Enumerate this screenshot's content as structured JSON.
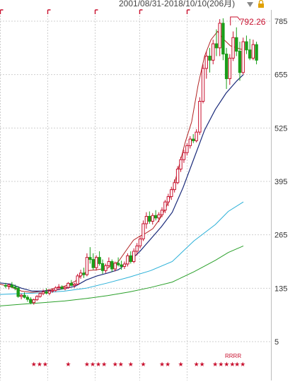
{
  "header": {
    "range_label": "2001/08/31-2018/10/10(206月)"
  },
  "chart_data": {
    "type": "candlestick",
    "y_ticks": [
      785,
      655,
      525,
      395,
      265,
      135,
      5
    ],
    "ylim": [
      -60,
      805
    ],
    "grid": true,
    "max_callout": {
      "value_label": "792.26",
      "value": 792.26,
      "index": 107
    },
    "colors": {
      "up": "#c8102e",
      "down": "#1a9e1a",
      "ma_short": "#b22222",
      "ma_mid": "#1a2a7a",
      "ma_long": "#2ab0d8",
      "ma_longest": "#2aa02a"
    },
    "moving_averages": [
      {
        "key": "ma_short",
        "points": [
          [
            0,
            145
          ],
          [
            5,
            138
          ],
          [
            10,
            128
          ],
          [
            15,
            125
          ],
          [
            20,
            128
          ],
          [
            25,
            134
          ],
          [
            30,
            140
          ],
          [
            35,
            152
          ],
          [
            38,
            168
          ],
          [
            41,
            178
          ],
          [
            45,
            180
          ],
          [
            50,
            184
          ],
          [
            55,
            200
          ],
          [
            59,
            230
          ],
          [
            62,
            252
          ],
          [
            65,
            262
          ],
          [
            68,
            270
          ],
          [
            71,
            280
          ],
          [
            74,
            302
          ],
          [
            77,
            330
          ],
          [
            80,
            370
          ],
          [
            83,
            430
          ],
          [
            86,
            490
          ],
          [
            89,
            540
          ],
          [
            92,
            630
          ],
          [
            95,
            700
          ],
          [
            98,
            740
          ],
          [
            101,
            760
          ],
          [
            104,
            740
          ],
          [
            107,
            725
          ],
          [
            110,
            720
          ],
          [
            113,
            715
          ]
        ]
      },
      {
        "key": "ma_mid",
        "points": [
          [
            0,
            148
          ],
          [
            5,
            145
          ],
          [
            10,
            135
          ],
          [
            15,
            128
          ],
          [
            20,
            128
          ],
          [
            25,
            130
          ],
          [
            30,
            134
          ],
          [
            35,
            140
          ],
          [
            40,
            155
          ],
          [
            45,
            165
          ],
          [
            50,
            172
          ],
          [
            55,
            180
          ],
          [
            60,
            200
          ],
          [
            65,
            225
          ],
          [
            70,
            255
          ],
          [
            75,
            285
          ],
          [
            80,
            320
          ],
          [
            85,
            380
          ],
          [
            90,
            450
          ],
          [
            95,
            520
          ],
          [
            100,
            570
          ],
          [
            105,
            610
          ],
          [
            110,
            640
          ],
          [
            113,
            655
          ]
        ]
      },
      {
        "key": "ma_long",
        "points": [
          [
            0,
            120
          ],
          [
            10,
            122
          ],
          [
            20,
            124
          ],
          [
            30,
            128
          ],
          [
            40,
            135
          ],
          [
            50,
            148
          ],
          [
            60,
            162
          ],
          [
            70,
            178
          ],
          [
            80,
            200
          ],
          [
            90,
            250
          ],
          [
            100,
            290
          ],
          [
            106,
            322
          ],
          [
            113,
            345
          ]
        ]
      },
      {
        "key": "ma_longest",
        "points": [
          [
            0,
            92
          ],
          [
            10,
            96
          ],
          [
            20,
            100
          ],
          [
            30,
            104
          ],
          [
            40,
            110
          ],
          [
            50,
            117
          ],
          [
            60,
            126
          ],
          [
            70,
            137
          ],
          [
            80,
            150
          ],
          [
            90,
            175
          ],
          [
            100,
            203
          ],
          [
            106,
            222
          ],
          [
            113,
            238
          ]
        ]
      }
    ],
    "candles": [
      [
        0,
        142,
        148,
        135,
        140
      ],
      [
        1,
        140,
        146,
        132,
        143
      ],
      [
        2,
        143,
        150,
        136,
        138
      ],
      [
        3,
        138,
        144,
        130,
        135
      ],
      [
        4,
        135,
        140,
        112,
        115
      ],
      [
        5,
        115,
        122,
        108,
        118
      ],
      [
        6,
        118,
        125,
        110,
        113
      ],
      [
        7,
        113,
        118,
        102,
        108
      ],
      [
        8,
        108,
        113,
        96,
        100
      ],
      [
        9,
        100,
        110,
        95,
        107
      ],
      [
        10,
        107,
        118,
        104,
        115
      ],
      [
        11,
        115,
        125,
        112,
        122
      ],
      [
        12,
        122,
        132,
        118,
        126
      ],
      [
        13,
        126,
        135,
        120,
        123
      ],
      [
        14,
        123,
        130,
        118,
        128
      ],
      [
        15,
        128,
        135,
        124,
        130
      ],
      [
        16,
        130,
        140,
        126,
        136
      ],
      [
        17,
        136,
        145,
        130,
        138
      ],
      [
        18,
        138,
        142,
        132,
        134
      ],
      [
        19,
        134,
        140,
        130,
        137
      ],
      [
        20,
        137,
        150,
        134,
        147
      ],
      [
        21,
        147,
        155,
        140,
        142
      ],
      [
        22,
        142,
        148,
        136,
        145
      ],
      [
        23,
        145,
        170,
        142,
        165
      ],
      [
        24,
        165,
        180,
        158,
        172
      ],
      [
        25,
        172,
        185,
        160,
        168
      ],
      [
        26,
        168,
        220,
        164,
        210
      ],
      [
        27,
        210,
        235,
        195,
        205
      ],
      [
        28,
        205,
        220,
        180,
        185
      ],
      [
        29,
        185,
        215,
        178,
        210
      ],
      [
        30,
        210,
        225,
        190,
        195
      ],
      [
        31,
        195,
        205,
        170,
        178
      ],
      [
        32,
        178,
        195,
        172,
        190
      ],
      [
        33,
        190,
        210,
        185,
        200
      ],
      [
        34,
        200,
        205,
        175,
        182
      ],
      [
        35,
        182,
        200,
        176,
        196
      ],
      [
        36,
        196,
        210,
        188,
        192
      ],
      [
        37,
        192,
        202,
        180,
        188
      ],
      [
        38,
        188,
        200,
        182,
        194
      ],
      [
        39,
        194,
        220,
        188,
        214
      ],
      [
        40,
        214,
        225,
        195,
        200
      ],
      [
        41,
        200,
        232,
        196,
        225
      ],
      [
        42,
        225,
        245,
        215,
        238
      ],
      [
        43,
        238,
        262,
        232,
        255
      ],
      [
        44,
        255,
        300,
        250,
        292
      ],
      [
        45,
        292,
        320,
        280,
        310
      ],
      [
        46,
        310,
        322,
        292,
        298
      ],
      [
        47,
        298,
        318,
        290,
        312
      ],
      [
        48,
        312,
        325,
        300,
        306
      ],
      [
        49,
        306,
        320,
        296,
        314
      ],
      [
        50,
        314,
        332,
        308,
        325
      ],
      [
        51,
        325,
        350,
        318,
        345
      ],
      [
        52,
        345,
        365,
        335,
        358
      ],
      [
        53,
        358,
        382,
        350,
        375
      ],
      [
        54,
        375,
        400,
        368,
        392
      ],
      [
        55,
        392,
        432,
        388,
        425
      ],
      [
        56,
        425,
        455,
        418,
        448
      ],
      [
        57,
        448,
        472,
        440,
        465
      ],
      [
        58,
        465,
        488,
        458,
        482
      ],
      [
        59,
        482,
        505,
        475,
        498
      ],
      [
        60,
        498,
        510,
        488,
        494
      ],
      [
        61,
        494,
        522,
        490,
        515
      ],
      [
        62,
        515,
        600,
        508,
        590
      ],
      [
        63,
        590,
        680,
        585,
        670
      ],
      [
        64,
        670,
        712,
        645,
        700
      ],
      [
        65,
        700,
        720,
        660,
        690
      ],
      [
        66,
        690,
        740,
        680,
        730
      ],
      [
        67,
        730,
        765,
        700,
        720
      ],
      [
        68,
        720,
        790,
        700,
        780
      ],
      [
        69,
        780,
        792,
        690,
        705
      ],
      [
        70,
        705,
        720,
        620,
        645
      ],
      [
        71,
        645,
        705,
        630,
        695
      ],
      [
        72,
        695,
        760,
        688,
        745
      ],
      [
        73,
        745,
        770,
        700,
        712
      ],
      [
        74,
        712,
        735,
        640,
        660
      ],
      [
        75,
        660,
        745,
        655,
        735
      ],
      [
        76,
        735,
        750,
        705,
        715
      ],
      [
        77,
        715,
        742,
        690,
        695
      ],
      [
        78,
        695,
        740,
        690,
        728
      ],
      [
        79,
        728,
        735,
        680,
        690
      ]
    ],
    "rating_markers": [
      {
        "x": 9,
        "symbol": "★★★"
      },
      {
        "x": 20,
        "symbol": "★"
      },
      {
        "x": 26,
        "symbol": "★★★★"
      },
      {
        "x": 35,
        "symbol": "★★"
      },
      {
        "x": 40,
        "symbol": "★"
      },
      {
        "x": 44,
        "symbol": "★"
      },
      {
        "x": 50,
        "symbol": "★★"
      },
      {
        "x": 56,
        "symbol": "★"
      },
      {
        "x": 61,
        "symbol": "★★"
      },
      {
        "x": 67,
        "symbol": "★★★★"
      },
      {
        "x": 74,
        "symbol": "★★"
      }
    ],
    "rating_label": "RRRR"
  }
}
